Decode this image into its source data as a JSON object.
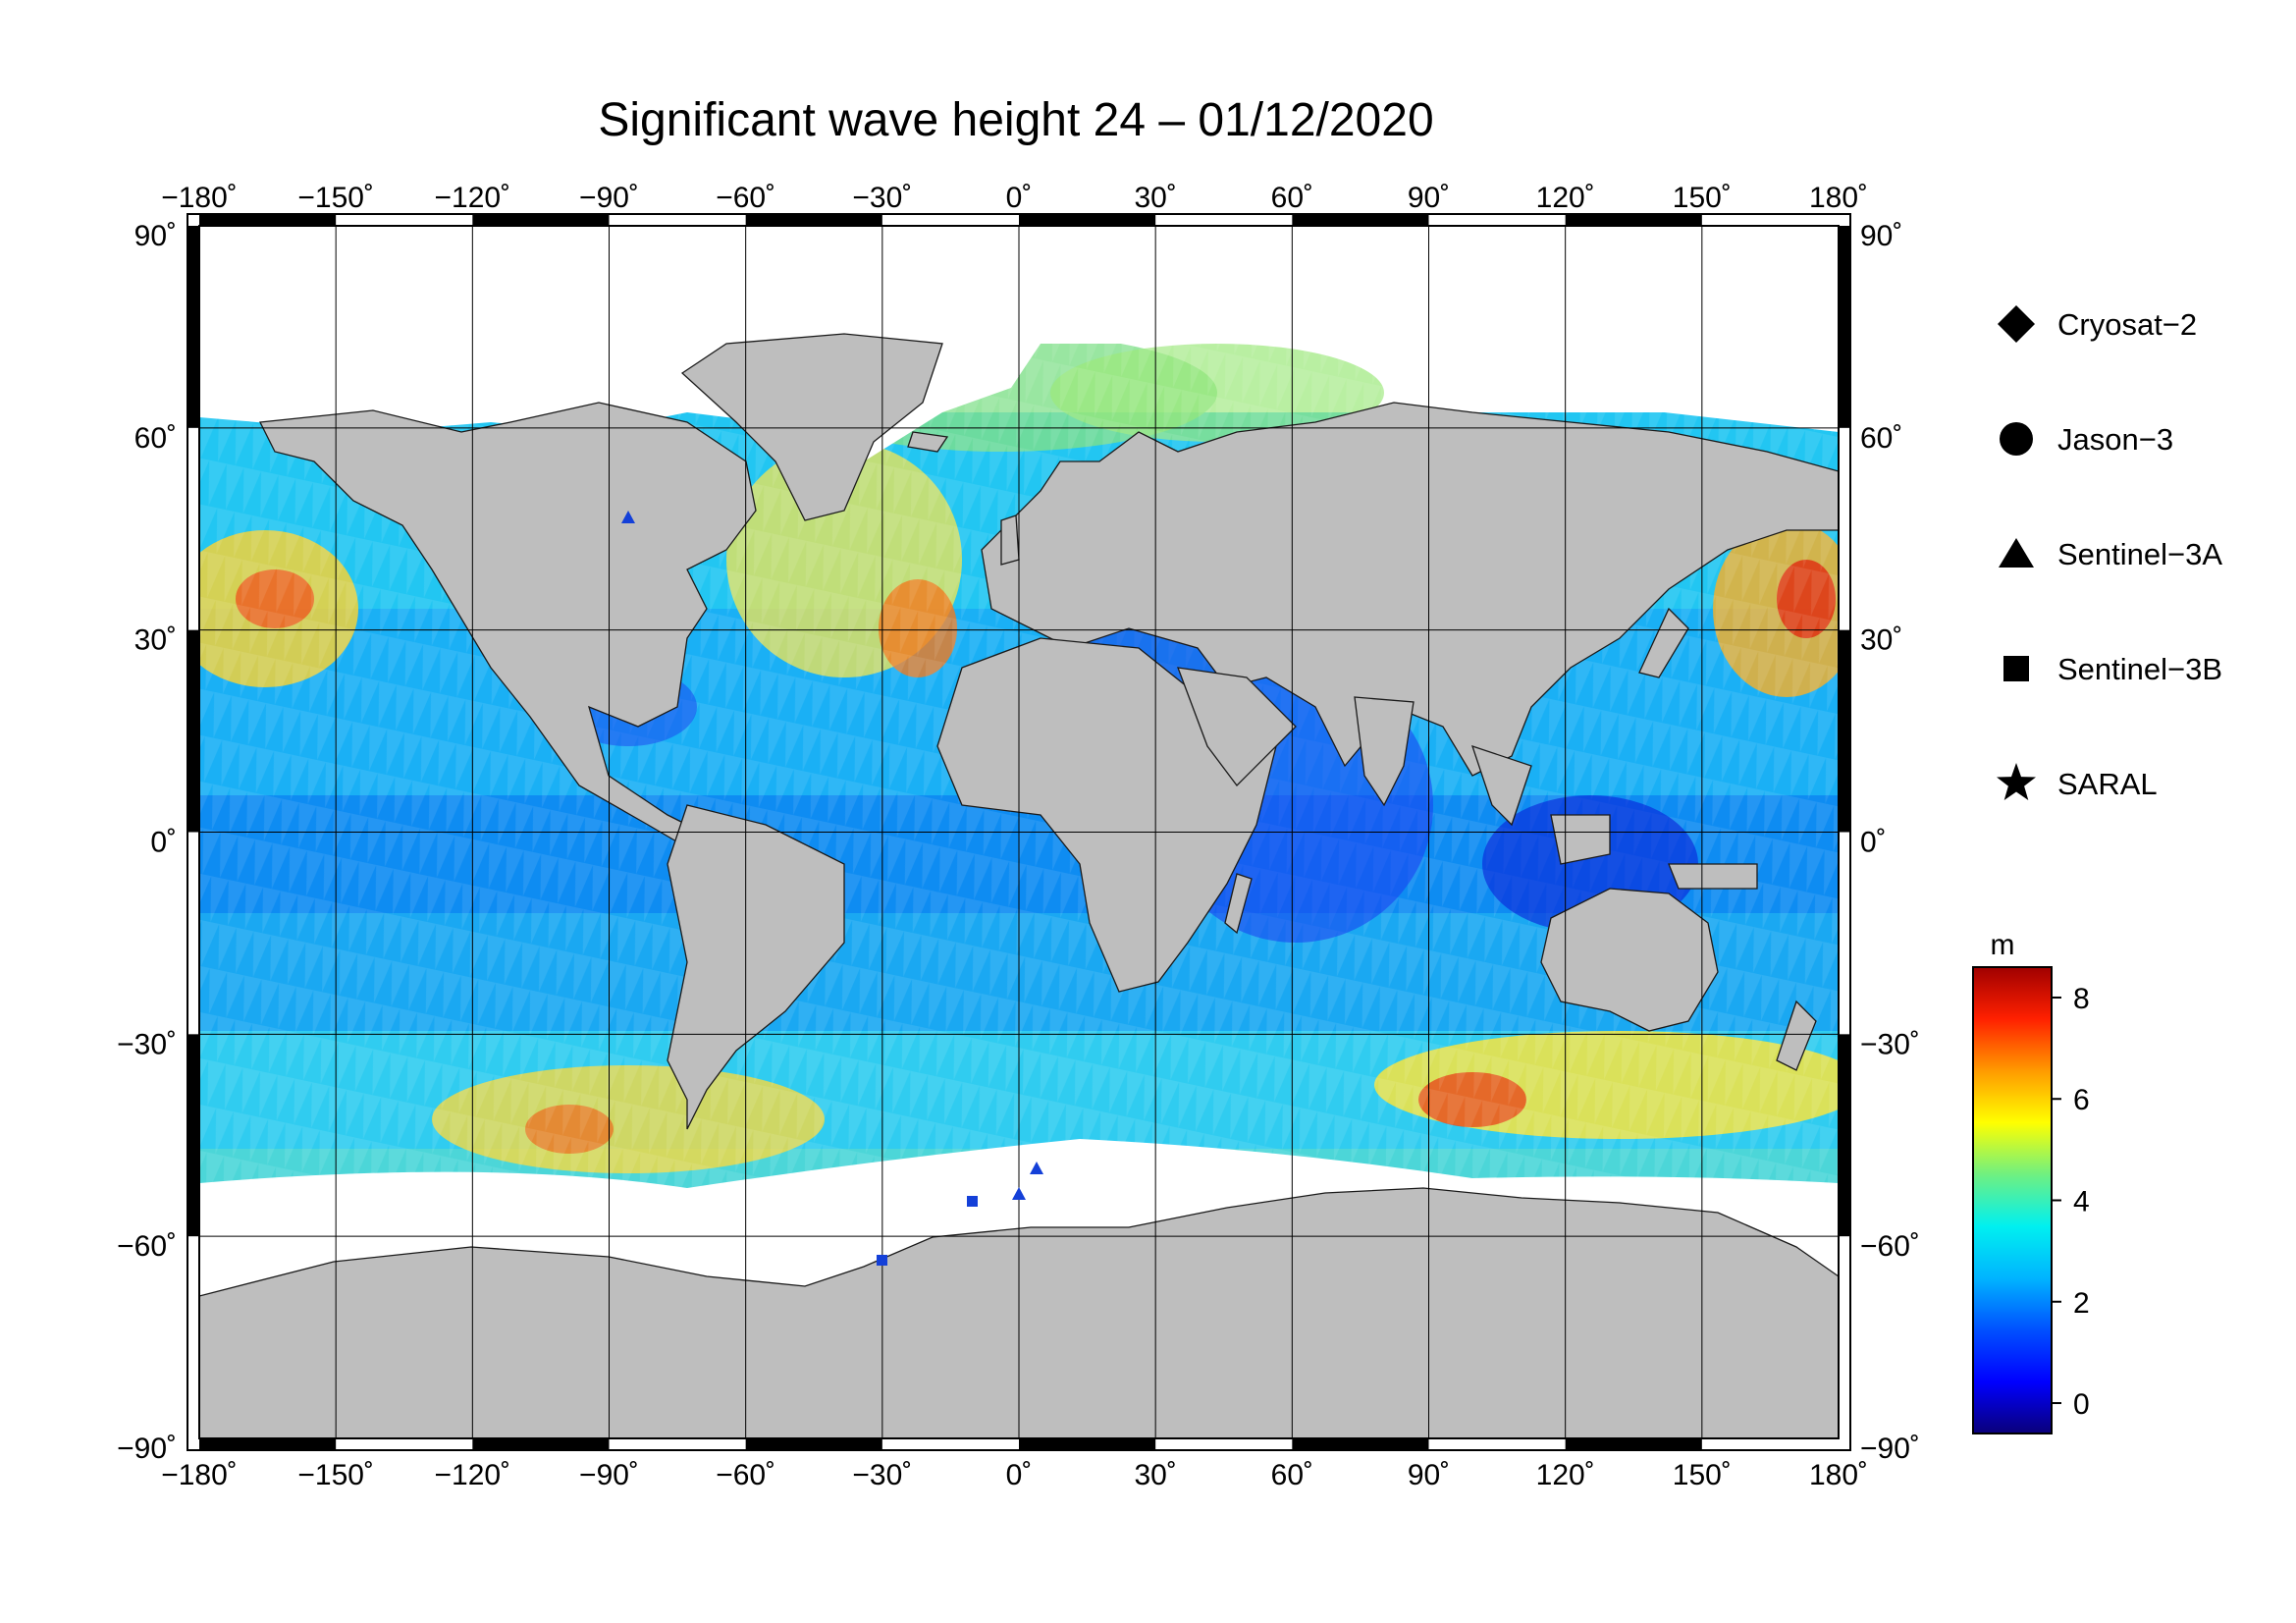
{
  "title": "Significant wave height 24 – 01/12/2020",
  "map": {
    "projection": "equirectangular",
    "lon_range": [
      -180,
      180
    ],
    "lat_range": [
      -90,
      90
    ],
    "lon_ticks": [
      -180,
      -150,
      -120,
      -90,
      -60,
      -30,
      0,
      30,
      60,
      90,
      120,
      150,
      180
    ],
    "lat_ticks": [
      90,
      60,
      30,
      0,
      -30,
      -60,
      -90
    ],
    "lon_tick_labels": [
      "−180˚",
      "−150˚",
      "−120˚",
      "−90˚",
      "−60˚",
      "−30˚",
      "0˚",
      "30˚",
      "60˚",
      "90˚",
      "120˚",
      "150˚",
      "180˚"
    ],
    "lat_tick_labels": [
      "90˚",
      "60˚",
      "30˚",
      "0˚",
      "−30˚",
      "−60˚",
      "−90˚"
    ],
    "grid": true,
    "land_color": "#bebebe",
    "ice_color": "#ffffff"
  },
  "legend": {
    "items": [
      {
        "label": "Cryosat−2",
        "marker": "diamond"
      },
      {
        "label": "Jason−3",
        "marker": "circle"
      },
      {
        "label": "Sentinel−3A",
        "marker": "triangle"
      },
      {
        "label": "Sentinel−3B",
        "marker": "square"
      },
      {
        "label": "SARAL",
        "marker": "star"
      }
    ]
  },
  "colorbar": {
    "unit": "m",
    "range": [
      -0.6,
      8.6
    ],
    "ticks": [
      0,
      2,
      4,
      6,
      8
    ],
    "tick_labels": [
      "0",
      "2",
      "4",
      "6",
      "8"
    ],
    "stops": [
      "#0a007a",
      "#0000ff",
      "#0050ff",
      "#00b4ff",
      "#00f0f0",
      "#70f080",
      "#ffff00",
      "#ff9a00",
      "#ff2000",
      "#a00000"
    ]
  }
}
